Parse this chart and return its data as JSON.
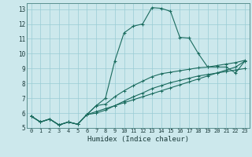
{
  "title": "",
  "xlabel": "Humidex (Indice chaleur)",
  "bg_color": "#cce8ec",
  "grid_color": "#99ccd4",
  "line_color": "#1a6b5e",
  "xlim": [
    -0.5,
    23.5
  ],
  "ylim": [
    5,
    13.4
  ],
  "xticks": [
    0,
    1,
    2,
    3,
    4,
    5,
    6,
    7,
    8,
    9,
    10,
    11,
    12,
    13,
    14,
    15,
    16,
    17,
    18,
    19,
    20,
    21,
    22,
    23
  ],
  "yticks": [
    5,
    6,
    7,
    8,
    9,
    10,
    11,
    12,
    13
  ],
  "line1_x": [
    0,
    1,
    2,
    3,
    4,
    5,
    6,
    7,
    8,
    9,
    10,
    11,
    12,
    13,
    14,
    15,
    16,
    17,
    18,
    19,
    20,
    21,
    22,
    23
  ],
  "line1_y": [
    5.8,
    5.4,
    5.6,
    5.2,
    5.4,
    5.25,
    5.9,
    6.5,
    7.0,
    9.5,
    11.4,
    11.85,
    12.0,
    13.1,
    13.05,
    12.85,
    11.1,
    11.05,
    10.0,
    9.1,
    9.1,
    9.1,
    8.7,
    9.5
  ],
  "line2_x": [
    0,
    1,
    2,
    3,
    4,
    5,
    6,
    7,
    8,
    9,
    10,
    11,
    12,
    13,
    14,
    15,
    16,
    17,
    18,
    19,
    20,
    21,
    22,
    23
  ],
  "line2_y": [
    5.8,
    5.4,
    5.6,
    5.2,
    5.4,
    5.25,
    5.9,
    6.5,
    6.6,
    7.1,
    7.5,
    7.85,
    8.15,
    8.45,
    8.65,
    8.75,
    8.85,
    8.95,
    9.05,
    9.1,
    9.2,
    9.3,
    9.4,
    9.55
  ],
  "line3_x": [
    0,
    1,
    2,
    3,
    4,
    5,
    6,
    7,
    8,
    9,
    10,
    11,
    12,
    13,
    14,
    15,
    16,
    17,
    18,
    19,
    20,
    21,
    22,
    23
  ],
  "line3_y": [
    5.8,
    5.4,
    5.6,
    5.2,
    5.4,
    5.25,
    5.9,
    6.0,
    6.2,
    6.5,
    6.8,
    7.1,
    7.35,
    7.65,
    7.85,
    8.05,
    8.2,
    8.35,
    8.5,
    8.6,
    8.7,
    8.8,
    8.9,
    9.0
  ],
  "line4_x": [
    0,
    1,
    2,
    3,
    4,
    5,
    6,
    7,
    8,
    9,
    10,
    11,
    12,
    13,
    14,
    15,
    16,
    17,
    18,
    19,
    20,
    21,
    22,
    23
  ],
  "line4_y": [
    5.8,
    5.4,
    5.6,
    5.2,
    5.4,
    5.25,
    5.9,
    6.1,
    6.3,
    6.5,
    6.7,
    6.9,
    7.1,
    7.3,
    7.5,
    7.7,
    7.9,
    8.1,
    8.3,
    8.5,
    8.7,
    8.9,
    9.1,
    9.5
  ]
}
